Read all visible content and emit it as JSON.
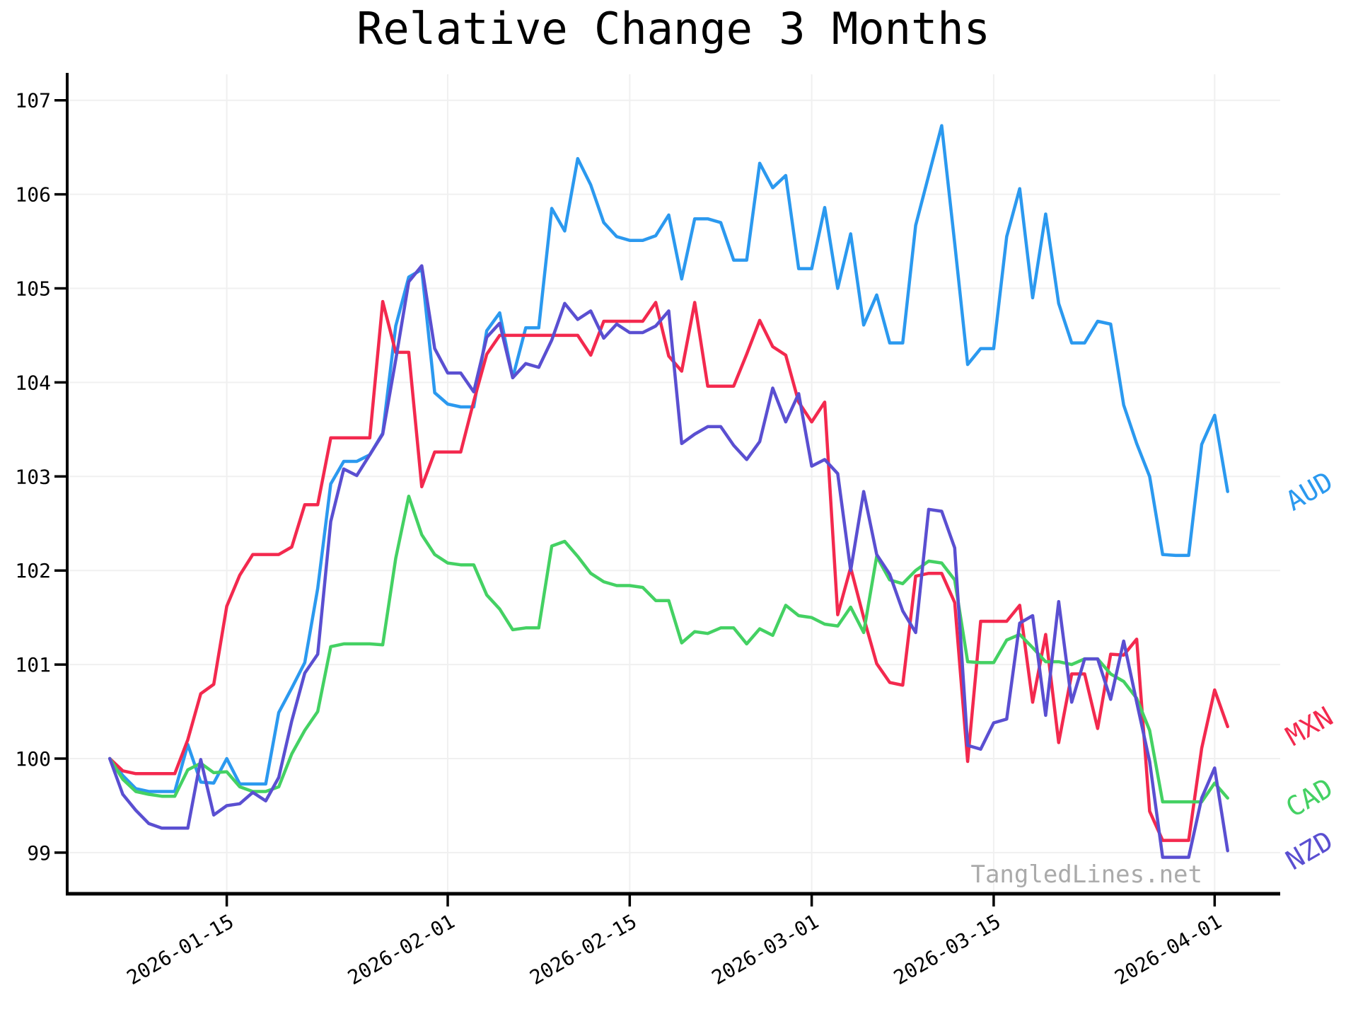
{
  "title": "Relative Change 3 Months",
  "watermark": "TangledLines.net",
  "chart_data": {
    "type": "line",
    "title": "Relative Change 3 Months",
    "xlabel": "",
    "ylabel": "",
    "grid": true,
    "legend_position": "labels-at-line-ends-right",
    "y_ticks": [
      99,
      100,
      101,
      102,
      103,
      104,
      105,
      106,
      107
    ],
    "ylim": [
      98.56,
      107.28
    ],
    "x_tick_labels": [
      "2026-01-15",
      "2026-02-01",
      "2026-02-15",
      "2026-03-01",
      "2026-03-15",
      "2026-04-01"
    ],
    "dates": [
      "2026-01-06",
      "2026-01-07",
      "2026-01-08",
      "2026-01-09",
      "2026-01-10",
      "2026-01-11",
      "2026-01-12",
      "2026-01-13",
      "2026-01-14",
      "2026-01-15",
      "2026-01-16",
      "2026-01-17",
      "2026-01-18",
      "2026-01-19",
      "2026-01-20",
      "2026-01-21",
      "2026-01-22",
      "2026-01-23",
      "2026-01-24",
      "2026-01-25",
      "2026-01-26",
      "2026-01-27",
      "2026-01-28",
      "2026-01-29",
      "2026-01-30",
      "2026-01-31",
      "2026-02-01",
      "2026-02-02",
      "2026-02-03",
      "2026-02-04",
      "2026-02-05",
      "2026-02-06",
      "2026-02-07",
      "2026-02-08",
      "2026-02-09",
      "2026-02-10",
      "2026-02-11",
      "2026-02-12",
      "2026-02-13",
      "2026-02-14",
      "2026-02-15",
      "2026-02-16",
      "2026-02-17",
      "2026-02-18",
      "2026-02-19",
      "2026-02-20",
      "2026-02-21",
      "2026-02-22",
      "2026-02-23",
      "2026-02-24",
      "2026-02-25",
      "2026-02-26",
      "2026-02-27",
      "2026-02-28",
      "2026-03-01",
      "2026-03-02",
      "2026-03-03",
      "2026-03-04",
      "2026-03-05",
      "2026-03-06",
      "2026-03-07",
      "2026-03-08",
      "2026-03-09",
      "2026-03-10",
      "2026-03-11",
      "2026-03-12",
      "2026-03-13",
      "2026-03-14",
      "2026-03-15",
      "2026-03-16",
      "2026-03-17",
      "2026-03-18",
      "2026-03-19",
      "2026-03-20",
      "2026-03-21",
      "2026-03-22",
      "2026-03-23",
      "2026-03-24",
      "2026-03-25",
      "2026-03-26",
      "2026-03-27",
      "2026-03-28",
      "2026-03-29",
      "2026-03-30",
      "2026-03-31",
      "2026-04-01",
      "2026-04-02"
    ],
    "series": [
      {
        "name": "AUD",
        "color": "#2b99ef",
        "values": [
          100.0,
          99.82,
          99.68,
          99.65,
          99.65,
          99.65,
          100.15,
          99.75,
          99.74,
          100.0,
          99.73,
          99.73,
          99.73,
          100.49,
          100.75,
          101.02,
          101.81,
          102.92,
          103.16,
          103.16,
          103.23,
          103.46,
          104.6,
          105.12,
          105.2,
          103.89,
          103.77,
          103.74,
          103.74,
          104.55,
          104.74,
          104.05,
          104.58,
          104.58,
          105.85,
          105.61,
          106.38,
          106.1,
          105.7,
          105.55,
          105.51,
          105.51,
          105.56,
          105.78,
          105.1,
          105.74,
          105.74,
          105.7,
          105.3,
          105.3,
          106.33,
          106.07,
          106.2,
          105.21,
          105.21,
          105.86,
          105.0,
          105.58,
          104.61,
          104.93,
          104.42,
          104.42,
          105.67,
          106.2,
          106.73,
          105.48,
          104.19,
          104.36,
          104.36,
          105.55,
          106.06,
          104.9,
          105.79,
          104.84,
          104.42,
          104.42,
          104.65,
          104.62,
          103.76,
          103.35,
          103.0,
          102.17,
          102.16,
          102.16,
          103.34,
          103.65,
          102.84
        ]
      },
      {
        "name": "MXN",
        "color": "#f3294e",
        "values": [
          100.0,
          99.87,
          99.84,
          99.84,
          99.84,
          99.84,
          100.2,
          100.69,
          100.79,
          101.62,
          101.95,
          102.17,
          102.17,
          102.17,
          102.25,
          102.7,
          102.7,
          103.41,
          103.41,
          103.41,
          103.41,
          104.86,
          104.32,
          104.32,
          102.89,
          103.26,
          103.26,
          103.26,
          103.8,
          104.3,
          104.5,
          104.5,
          104.5,
          104.5,
          104.5,
          104.5,
          104.5,
          104.29,
          104.65,
          104.65,
          104.65,
          104.65,
          104.85,
          104.28,
          104.12,
          104.85,
          103.96,
          103.96,
          103.96,
          104.3,
          104.66,
          104.38,
          104.29,
          103.79,
          103.58,
          103.79,
          101.53,
          102.03,
          101.5,
          101.01,
          100.81,
          100.78,
          101.94,
          101.97,
          101.97,
          101.66,
          99.97,
          101.46,
          101.46,
          101.46,
          101.63,
          100.6,
          101.32,
          100.17,
          100.9,
          100.9,
          100.32,
          101.11,
          101.1,
          101.27,
          99.44,
          99.13,
          99.13,
          99.13,
          100.11,
          100.73,
          100.34
        ]
      },
      {
        "name": "CAD",
        "color": "#44d163",
        "values": [
          100.0,
          99.78,
          99.65,
          99.62,
          99.6,
          99.6,
          99.88,
          99.95,
          99.85,
          99.86,
          99.7,
          99.65,
          99.65,
          99.7,
          100.05,
          100.3,
          100.5,
          101.19,
          101.22,
          101.22,
          101.22,
          101.21,
          102.13,
          102.79,
          102.38,
          102.17,
          102.08,
          102.06,
          102.06,
          101.74,
          101.59,
          101.37,
          101.39,
          101.39,
          102.26,
          102.31,
          102.15,
          101.97,
          101.88,
          101.84,
          101.84,
          101.82,
          101.68,
          101.68,
          101.23,
          101.35,
          101.33,
          101.39,
          101.39,
          101.22,
          101.38,
          101.31,
          101.63,
          101.52,
          101.5,
          101.43,
          101.41,
          101.61,
          101.34,
          102.15,
          101.9,
          101.86,
          102.0,
          102.1,
          102.08,
          101.9,
          101.03,
          101.02,
          101.02,
          101.26,
          101.32,
          101.18,
          101.03,
          101.03,
          101.0,
          101.06,
          101.06,
          100.9,
          100.82,
          100.64,
          100.3,
          99.54,
          99.54,
          99.54,
          99.54,
          99.74,
          99.58
        ]
      },
      {
        "name": "NZD",
        "color": "#5a4fd1",
        "values": [
          100.0,
          99.62,
          99.45,
          99.31,
          99.26,
          99.26,
          99.26,
          99.99,
          99.4,
          99.5,
          99.52,
          99.64,
          99.55,
          99.8,
          100.4,
          100.91,
          101.11,
          102.52,
          103.08,
          103.01,
          103.23,
          103.45,
          104.24,
          105.07,
          105.24,
          104.36,
          104.1,
          104.1,
          103.9,
          104.48,
          104.63,
          104.05,
          104.2,
          104.16,
          104.45,
          104.84,
          104.67,
          104.76,
          104.47,
          104.62,
          104.53,
          104.53,
          104.6,
          104.76,
          103.35,
          103.45,
          103.53,
          103.53,
          103.33,
          103.18,
          103.37,
          103.94,
          103.58,
          103.88,
          103.11,
          103.18,
          103.03,
          102.0,
          102.84,
          102.17,
          101.96,
          101.57,
          101.34,
          102.65,
          102.63,
          102.24,
          100.14,
          100.1,
          100.38,
          100.42,
          101.44,
          101.52,
          100.46,
          101.67,
          100.6,
          101.06,
          101.06,
          100.63,
          101.25,
          100.6,
          99.97,
          98.95,
          98.95,
          98.95,
          99.58,
          99.9,
          99.02
        ]
      }
    ]
  }
}
